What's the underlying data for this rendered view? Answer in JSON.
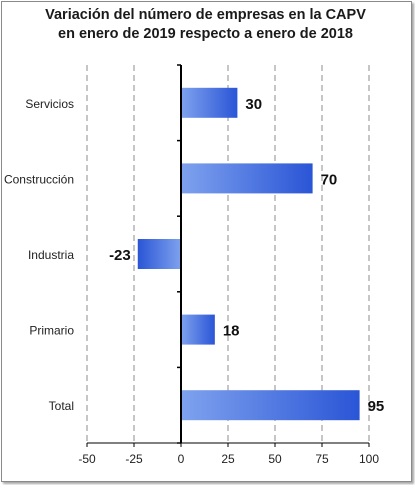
{
  "chart_data": {
    "type": "bar",
    "orientation": "horizontal",
    "title_line1": "Variación del número de empresas en la CAPV",
    "title_line2": "en enero de 2019 respecto a enero de 2018",
    "categories": [
      "Servicios",
      "Construcción",
      "Industria",
      "Primario",
      "Total"
    ],
    "values": [
      30,
      70,
      -23,
      18,
      95
    ],
    "xlim": [
      -50,
      100
    ],
    "xticks": [
      -50,
      -25,
      0,
      25,
      50,
      75,
      100
    ],
    "grid": "vertical-dashed",
    "legend": "none",
    "colors": {
      "bar_dark": "#2a55d6",
      "bar_light": "#7fa2ee",
      "grid": "#8c8c8c"
    }
  }
}
